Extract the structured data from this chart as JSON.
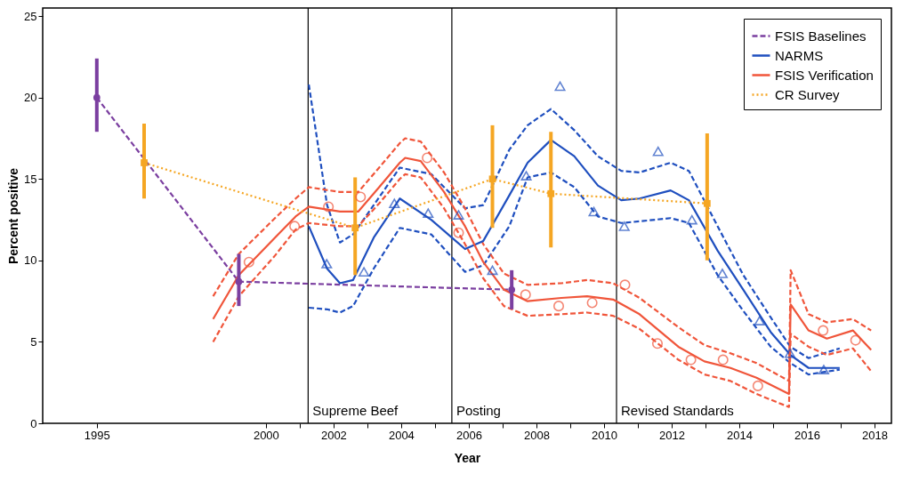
{
  "chart_data": {
    "type": "line",
    "xlabel": "Year",
    "ylabel": "Percent positive",
    "xlim": [
      1993.4,
      2018.5
    ],
    "ylim": [
      0,
      25.5
    ],
    "xticks": [
      1995,
      2000,
      {
        "value": 2001,
        "label": null
      },
      2002,
      {
        "value": 2003,
        "label": null
      },
      2004,
      {
        "value": 2005,
        "label": null
      },
      2006,
      {
        "value": 2007,
        "label": null
      },
      2008,
      {
        "value": 2009,
        "label": null
      },
      2010,
      {
        "value": 2011,
        "label": null
      },
      2012,
      {
        "value": 2013,
        "label": null
      },
      2014,
      {
        "value": 2015,
        "label": null
      },
      2016,
      {
        "value": 2017,
        "label": null
      },
      2018
    ],
    "yticks": [
      0,
      5,
      10,
      15,
      20,
      25
    ],
    "grid": false,
    "legend": "top right",
    "ref_lines": [
      {
        "axis": "x",
        "value": 2001.25,
        "label": "Supreme Beef",
        "color": "#000000"
      },
      {
        "axis": "x",
        "value": 2005.5,
        "label": "Posting",
        "color": "#000000"
      },
      {
        "axis": "x",
        "value": 2010.37,
        "label": "Revised Standards",
        "color": "#000000"
      }
    ],
    "series": [
      {
        "name": "FSIS Baselines",
        "type": "line",
        "color": "#7b3fa0",
        "line_style": "dashed",
        "marker": "circle",
        "x": [
          1995,
          1999.2,
          2007.27
        ],
        "values": [
          20.0,
          8.7,
          8.2
        ],
        "errors": [
          [
            17.9,
            22.4
          ],
          [
            7.2,
            10.4
          ],
          [
            7.0,
            9.4
          ]
        ]
      },
      {
        "name": "NARMS",
        "type": "line",
        "color": "#1f4fbf",
        "line_style": "solid",
        "marker": "none",
        "x": [
          2001.27,
          2001.81,
          2002.19,
          2002.58,
          2003.19,
          2003.96,
          2004.89,
          2005.89,
          2006.43,
          2007.2,
          2007.74,
          2008.43,
          2009.12,
          2009.82,
          2010.51,
          2011.05,
          2011.97,
          2012.51,
          2013.36,
          2014.12,
          2014.93,
          2015.51,
          2016.05,
          2016.97
        ],
        "values": [
          12.1,
          9.5,
          8.6,
          8.8,
          11.4,
          13.8,
          12.5,
          10.7,
          11.2,
          14.0,
          16.0,
          17.4,
          16.4,
          14.6,
          13.7,
          13.8,
          14.3,
          13.7,
          10.6,
          8.2,
          5.6,
          4.2,
          3.4,
          3.4
        ]
      },
      {
        "name": "FSIS Verification",
        "type": "line",
        "color": "#f0553a",
        "line_style": "solid",
        "marker": "none",
        "x": [
          1998.44,
          1999.2,
          2000.27,
          2000.88,
          2001.27,
          2002.19,
          2002.73,
          2003.35,
          2003.96,
          2004.12,
          2004.58,
          2005.27,
          2005.89,
          2006.43,
          2007.04,
          2007.74,
          2008.74,
          2009.5,
          2010.27,
          2011.05,
          2012.2,
          2012.97,
          2013.74,
          2014.51,
          2015.47,
          2015.52,
          2016.05,
          2016.59,
          2017.36,
          2017.9
        ],
        "values": [
          6.4,
          9.1,
          11.4,
          12.7,
          13.3,
          13.0,
          13.0,
          14.5,
          16.0,
          16.3,
          16.1,
          14.2,
          12.1,
          9.9,
          8.2,
          7.5,
          7.7,
          7.8,
          7.6,
          6.7,
          4.7,
          3.8,
          3.4,
          2.8,
          1.8,
          7.3,
          5.7,
          5.2,
          5.7,
          4.5
        ]
      },
      {
        "name": "CR Survey",
        "type": "line",
        "color": "#f5a623",
        "line_style": "dotted",
        "marker": "square",
        "x": [
          1996.4,
          2002.64,
          2006.7,
          2008.43,
          2013.05
        ],
        "values": [
          16.0,
          12.0,
          15.0,
          14.1,
          13.5
        ],
        "errors": [
          [
            13.8,
            18.4
          ],
          [
            9.1,
            15.1
          ],
          [
            12.0,
            18.3
          ],
          [
            10.8,
            17.9
          ],
          [
            10.0,
            17.8
          ]
        ]
      },
      {
        "color": "#1f4fbf",
        "line_style": "dashed",
        "marker": "none",
        "x": [
          2001.27,
          2001.81,
          2002.19,
          2002.58,
          2003.19,
          2003.96,
          2004.89,
          2005.89,
          2006.43,
          2007.2,
          2007.74,
          2008.43,
          2009.12,
          2009.82,
          2010.51,
          2011.05,
          2011.97,
          2012.51,
          2013.36,
          2014.12,
          2014.93,
          2015.51,
          2016.05,
          2016.97
        ],
        "values": [
          20.8,
          13.4,
          11.1,
          11.6,
          13.4,
          15.7,
          15.3,
          13.2,
          13.4,
          16.8,
          18.3,
          19.3,
          18.0,
          16.4,
          15.5,
          15.4,
          16.0,
          15.5,
          12.1,
          9.1,
          6.5,
          4.7,
          4.0,
          4.6
        ]
      },
      {
        "color": "#1f4fbf",
        "line_style": "dashed",
        "marker": "none",
        "x": [
          2001.27,
          2001.81,
          2002.19,
          2002.58,
          2003.19,
          2003.96,
          2004.89,
          2005.89,
          2006.43,
          2007.2,
          2007.74,
          2008.43,
          2009.12,
          2009.82,
          2010.51,
          2011.05,
          2011.97,
          2012.51,
          2013.36,
          2014.12,
          2014.93,
          2015.51,
          2016.05,
          2016.97
        ],
        "values": [
          7.1,
          7.0,
          6.8,
          7.2,
          9.5,
          12.0,
          11.6,
          9.3,
          9.7,
          12.1,
          15.1,
          15.4,
          14.5,
          12.7,
          12.3,
          12.4,
          12.6,
          12.3,
          9.1,
          6.9,
          4.7,
          3.7,
          3.0,
          3.3
        ]
      },
      {
        "color": "#f0553a",
        "line_style": "dashed",
        "marker": "none",
        "x": [
          1998.44,
          1999.2,
          2000.27,
          2000.88,
          2001.27,
          2002.19,
          2002.73,
          2003.35,
          2003.96,
          2004.12,
          2004.58,
          2005.27,
          2005.89,
          2006.43,
          2007.04,
          2007.74,
          2008.74,
          2009.5,
          2010.27,
          2011.05,
          2012.2,
          2012.97,
          2013.74,
          2014.51,
          2015.47,
          2015.52,
          2016.05,
          2016.59,
          2017.36,
          2017.9
        ],
        "values": [
          7.8,
          10.4,
          12.6,
          13.8,
          14.5,
          14.2,
          14.2,
          15.7,
          17.2,
          17.5,
          17.3,
          15.4,
          13.2,
          11.0,
          9.2,
          8.5,
          8.6,
          8.8,
          8.6,
          7.7,
          5.9,
          4.8,
          4.3,
          3.7,
          2.6,
          9.4,
          6.7,
          6.2,
          6.4,
          5.7
        ]
      },
      {
        "color": "#f0553a",
        "line_style": "dashed",
        "marker": "none",
        "x": [
          1998.44,
          1999.2,
          2000.27,
          2000.88,
          2001.27,
          2002.19,
          2002.73,
          2003.35,
          2003.96,
          2004.12,
          2004.58,
          2005.27,
          2005.89,
          2006.43,
          2007.04,
          2007.74,
          2008.74,
          2009.5,
          2010.27,
          2011.05,
          2012.2,
          2012.97,
          2013.74,
          2014.51,
          2015.47,
          2015.52,
          2016.05,
          2016.59,
          2017.36,
          2017.9
        ],
        "values": [
          5.0,
          7.8,
          10.3,
          11.9,
          12.3,
          12.1,
          12.1,
          13.5,
          15.0,
          15.3,
          15.1,
          13.2,
          11.0,
          8.9,
          7.2,
          6.6,
          6.7,
          6.8,
          6.6,
          5.8,
          3.9,
          3.0,
          2.6,
          1.8,
          1.0,
          5.5,
          4.7,
          4.2,
          4.6,
          3.2
        ]
      },
      {
        "type": "scatter",
        "color": "#1f4fbf",
        "marker": "triangle",
        "x": [
          2001.8,
          2002.9,
          2003.8,
          2004.8,
          2005.7,
          2006.7,
          2007.7,
          2008.7,
          2009.7,
          2010.6,
          2011.6,
          2012.6,
          2013.5,
          2014.6,
          2015.5,
          2016.5
        ],
        "values": [
          9.8,
          9.3,
          13.5,
          12.9,
          12.8,
          9.4,
          15.2,
          20.7,
          13.0,
          12.1,
          16.7,
          12.5,
          9.2,
          6.3,
          4.3,
          3.3
        ]
      },
      {
        "type": "scatter",
        "color": "#f0553a",
        "marker": "circle",
        "x": [
          1999.5,
          2000.85,
          2001.85,
          2002.8,
          2004.77,
          2005.7,
          2007.68,
          2008.66,
          2009.65,
          2010.62,
          2011.58,
          2012.57,
          2013.52,
          2014.55,
          2016.48,
          2017.44
        ],
        "values": [
          9.9,
          12.1,
          13.3,
          13.9,
          16.3,
          11.7,
          7.9,
          7.2,
          7.4,
          8.5,
          4.9,
          3.9,
          3.9,
          2.3,
          5.7,
          5.1
        ]
      }
    ]
  }
}
